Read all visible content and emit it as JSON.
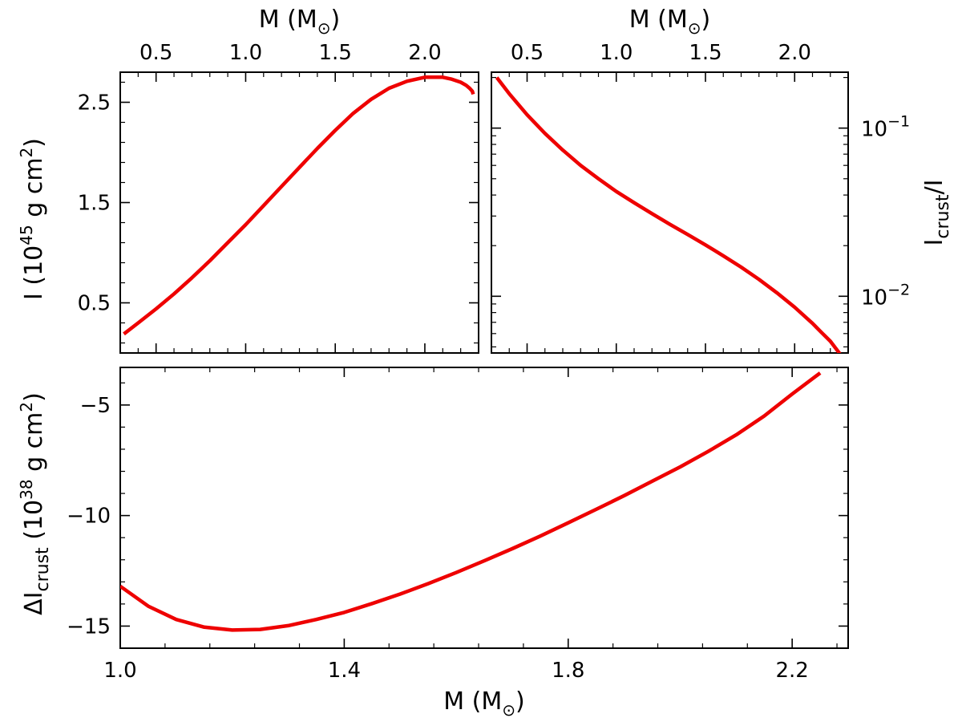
{
  "style": {
    "line_color": "#ee0000",
    "axis_color": "#000000",
    "background": "#ffffff"
  },
  "chart_data": [
    {
      "id": "moment-of-inertia",
      "type": "line",
      "xlabel": "M (M⊙)",
      "xlabel_position": "top",
      "ylabel": "I (10^45 g cm^2)",
      "ylabel_position": "left",
      "xlim": [
        0.3,
        2.3
      ],
      "ylim": [
        0.0,
        2.8
      ],
      "x_ticks": [
        0.5,
        1.0,
        1.5,
        2.0
      ],
      "x_tick_labels": [
        "0.5",
        "1.0",
        "1.5",
        "2.0"
      ],
      "y_ticks": [
        0.5,
        1.5,
        2.5
      ],
      "y_tick_labels": [
        "0.5",
        "1.5",
        "2.5"
      ],
      "series": [
        {
          "x": [
            0.32,
            0.4,
            0.5,
            0.6,
            0.7,
            0.8,
            0.9,
            1.0,
            1.1,
            1.2,
            1.3,
            1.4,
            1.5,
            1.6,
            1.7,
            1.8,
            1.9,
            2.0,
            2.1,
            2.15,
            2.2,
            2.23,
            2.25,
            2.265,
            2.27
          ],
          "y": [
            0.19,
            0.3,
            0.44,
            0.59,
            0.75,
            0.92,
            1.1,
            1.28,
            1.47,
            1.66,
            1.85,
            2.04,
            2.22,
            2.39,
            2.53,
            2.64,
            2.71,
            2.75,
            2.75,
            2.73,
            2.7,
            2.67,
            2.64,
            2.61,
            2.58
          ]
        }
      ]
    },
    {
      "id": "crust-fraction",
      "type": "line",
      "xlabel": "M (M⊙)",
      "xlabel_position": "top",
      "ylabel": "I_crust/I",
      "ylabel_position": "right",
      "yscale": "log",
      "xlim": [
        0.3,
        2.3
      ],
      "ylim": [
        0.0046,
        0.215
      ],
      "x_ticks": [
        0.5,
        1.0,
        1.5,
        2.0
      ],
      "x_tick_labels": [
        "0.5",
        "1.0",
        "1.5",
        "2.0"
      ],
      "y_ticks": [
        0.01,
        0.1
      ],
      "y_tick_labels": [
        {
          "base": "10",
          "exp": "−2"
        },
        {
          "base": "10",
          "exp": "−1"
        }
      ],
      "series": [
        {
          "x": [
            0.33,
            0.4,
            0.5,
            0.6,
            0.7,
            0.8,
            0.9,
            1.0,
            1.1,
            1.2,
            1.3,
            1.4,
            1.5,
            1.6,
            1.7,
            1.8,
            1.9,
            2.0,
            2.1,
            2.15,
            2.2,
            2.25,
            2.27,
            2.29
          ],
          "y": [
            0.2,
            0.16,
            0.12,
            0.093,
            0.074,
            0.06,
            0.05,
            0.042,
            0.036,
            0.031,
            0.0268,
            0.0233,
            0.0202,
            0.0174,
            0.0149,
            0.0126,
            0.0105,
            0.0086,
            0.0069,
            0.0061,
            0.0054,
            0.0046,
            0.0042,
            0.0039
          ]
        }
      ]
    },
    {
      "id": "crust-shift",
      "type": "line",
      "xlabel": "M (M⊙)",
      "xlabel_position": "bottom",
      "ylabel": "ΔI_crust (10^38 g cm^2)",
      "ylabel_position": "left",
      "xlim": [
        1.0,
        2.3
      ],
      "ylim": [
        -16,
        -3.3
      ],
      "x_ticks": [
        1.0,
        1.4,
        1.8,
        2.2
      ],
      "x_tick_labels": [
        "1.0",
        "1.4",
        "1.8",
        "2.2"
      ],
      "y_ticks": [
        -15,
        -10,
        -5
      ],
      "y_tick_labels": [
        "−15",
        "−10",
        "−5"
      ],
      "series": [
        {
          "x": [
            1.0,
            1.05,
            1.1,
            1.15,
            1.2,
            1.25,
            1.3,
            1.35,
            1.4,
            1.45,
            1.5,
            1.55,
            1.6,
            1.65,
            1.7,
            1.75,
            1.8,
            1.85,
            1.9,
            1.95,
            2.0,
            2.05,
            2.1,
            2.15,
            2.2,
            2.25
          ],
          "y": [
            -13.2,
            -14.1,
            -14.7,
            -15.05,
            -15.18,
            -15.15,
            -14.98,
            -14.7,
            -14.38,
            -13.98,
            -13.55,
            -13.08,
            -12.58,
            -12.05,
            -11.5,
            -10.93,
            -10.33,
            -9.72,
            -9.1,
            -8.45,
            -7.8,
            -7.1,
            -6.35,
            -5.5,
            -4.5,
            -3.55
          ]
        }
      ]
    }
  ]
}
